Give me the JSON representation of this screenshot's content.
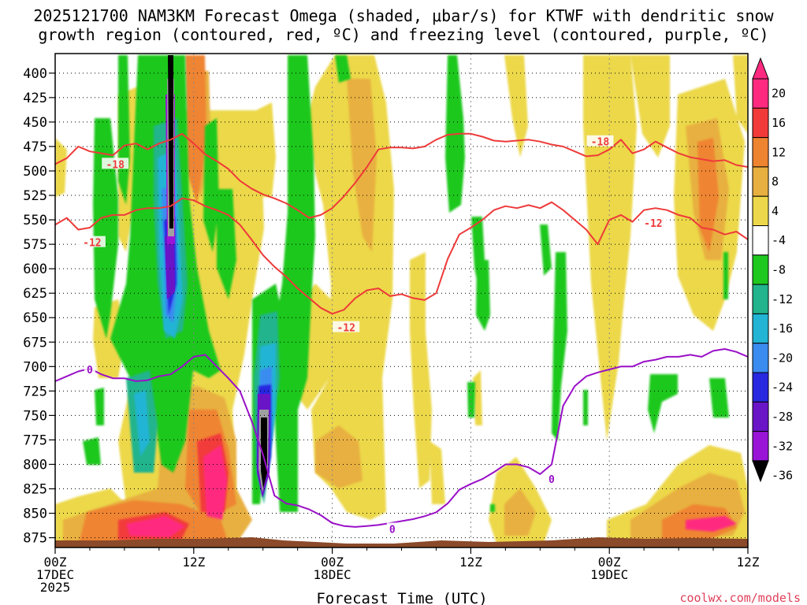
{
  "chart_data": {
    "type": "heatmap",
    "title_line1": "2025121700 NAM3KM Forecast Omega (shaded, μbar/s) for KTWF with dendritic snow",
    "title_line2": "growth region (contoured, red, ºC) and freezing level (contoured, purple, ºC)",
    "xlabel": "Forecast Time (UTC)",
    "ylabel": "",
    "credit": "coolwx.com/models",
    "y_ticks": [
      "400",
      "425",
      "450",
      "475",
      "500",
      "525",
      "550",
      "575",
      "600",
      "625",
      "650",
      "675",
      "700",
      "725",
      "750",
      "775",
      "800",
      "825",
      "850",
      "875"
    ],
    "y_range_mb": [
      380,
      885
    ],
    "x_range_hours": [
      0,
      60
    ],
    "x_ticks": [
      {
        "hour": 0,
        "line1": "00Z",
        "line2": "17DEC",
        "line3": "2025"
      },
      {
        "hour": 12,
        "line1": "12Z",
        "line2": "",
        "line3": ""
      },
      {
        "hour": 24,
        "line1": "00Z",
        "line2": "18DEC",
        "line3": ""
      },
      {
        "hour": 36,
        "line1": "12Z",
        "line2": "",
        "line3": ""
      },
      {
        "hour": 48,
        "line1": "00Z",
        "line2": "19DEC",
        "line3": ""
      },
      {
        "hour": 60,
        "line1": "12Z",
        "line2": "",
        "line3": ""
      }
    ],
    "colorbar": {
      "labels": [
        "20",
        "16",
        "12",
        "8",
        "4",
        "-4",
        "-8",
        "-12",
        "-16",
        "-20",
        "-24",
        "-28",
        "-32",
        "-36"
      ],
      "colors": [
        "#ff2a80",
        "#f23a3a",
        "#ef8430",
        "#e8b040",
        "#ecd84a",
        "#ffffff",
        "#1ec81e",
        "#22b48c",
        "#22b4d4",
        "#3a8cf0",
        "#2828e0",
        "#6a14c8",
        "#9a14d8",
        "#a0a0a0",
        "#000000"
      ]
    },
    "series": [
      {
        "name": "-18C isotherm",
        "color": "#ee3a3a",
        "x": [
          0,
          1,
          2,
          3,
          4,
          5,
          6,
          7,
          8,
          9,
          10,
          11,
          12,
          13,
          14,
          15,
          16,
          17,
          18,
          19,
          20,
          21,
          22,
          23,
          24,
          25,
          26,
          27,
          28,
          29,
          30,
          31,
          32,
          33,
          34,
          35,
          36,
          37,
          38,
          39,
          40,
          41,
          42,
          43,
          44,
          45,
          46,
          47,
          48,
          49,
          50,
          51,
          52,
          53,
          54,
          55,
          56,
          57,
          58,
          59,
          60
        ],
        "y": [
          493,
          487,
          475,
          480,
          482,
          484,
          474,
          472,
          478,
          472,
          468,
          462,
          472,
          483,
          490,
          498,
          510,
          518,
          524,
          528,
          533,
          540,
          548,
          545,
          538,
          526,
          512,
          496,
          478,
          476,
          476,
          477,
          475,
          468,
          463,
          462,
          462,
          465,
          469,
          470,
          469,
          468,
          470,
          473,
          475,
          480,
          485,
          484,
          478,
          468,
          482,
          478,
          470,
          476,
          482,
          486,
          488,
          490,
          489,
          494,
          496
        ]
      },
      {
        "name": "-12C isotherm",
        "color": "#ee3a3a",
        "x": [
          0,
          1,
          2,
          3,
          4,
          5,
          6,
          7,
          8,
          9,
          10,
          11,
          12,
          13,
          14,
          15,
          16,
          17,
          18,
          19,
          20,
          21,
          22,
          23,
          24,
          25,
          26,
          27,
          28,
          29,
          30,
          31,
          32,
          33,
          34,
          35,
          36,
          37,
          38,
          39,
          40,
          41,
          42,
          43,
          44,
          45,
          46,
          47,
          48,
          49,
          50,
          51,
          52,
          53,
          54,
          55,
          56,
          57,
          58,
          59,
          60
        ],
        "y": [
          555,
          548,
          560,
          558,
          548,
          545,
          545,
          540,
          538,
          538,
          536,
          528,
          530,
          536,
          540,
          545,
          555,
          570,
          586,
          598,
          608,
          620,
          630,
          640,
          646,
          642,
          630,
          622,
          620,
          628,
          626,
          630,
          632,
          625,
          590,
          565,
          558,
          550,
          540,
          536,
          538,
          535,
          538,
          532,
          540,
          550,
          560,
          575,
          550,
          545,
          552,
          540,
          538,
          540,
          545,
          548,
          558,
          560,
          565,
          562,
          570
        ]
      },
      {
        "name": "0C freezing level",
        "color": "#9a10c8",
        "x": [
          0,
          1,
          2,
          3,
          4,
          5,
          6,
          7,
          8,
          9,
          10,
          11,
          12,
          13,
          14,
          15,
          16,
          17,
          18,
          19,
          20,
          21,
          22,
          23,
          24,
          25,
          26,
          27,
          28,
          29,
          30,
          31,
          32,
          33,
          34,
          35,
          36,
          37,
          38,
          39,
          40,
          41,
          42,
          43,
          44,
          45,
          46,
          47,
          48,
          49,
          50,
          51,
          52,
          53,
          54,
          55,
          56,
          57,
          58,
          59,
          60
        ],
        "y": [
          715,
          710,
          705,
          702,
          708,
          712,
          712,
          715,
          714,
          710,
          708,
          700,
          690,
          688,
          700,
          712,
          725,
          755,
          790,
          832,
          840,
          842,
          846,
          852,
          860,
          863,
          864,
          863,
          862,
          860,
          858,
          856,
          853,
          849,
          840,
          826,
          820,
          815,
          808,
          800,
          800,
          803,
          810,
          800,
          740,
          720,
          710,
          706,
          703,
          700,
          700,
          695,
          693,
          690,
          690,
          688,
          690,
          684,
          682,
          685,
          690
        ]
      }
    ],
    "isotherm_labels": [
      {
        "text": "-18",
        "hour": 5.2,
        "mb": 493
      },
      {
        "text": "-18",
        "hour": 47.2,
        "mb": 470
      },
      {
        "text": "-12",
        "hour": 3.2,
        "mb": 573
      },
      {
        "text": "-12",
        "hour": 25.2,
        "mb": 660
      },
      {
        "text": "-12",
        "hour": 51.8,
        "mb": 553
      },
      {
        "text": "0",
        "hour": 3.0,
        "mb": 703
      },
      {
        "text": "0",
        "hour": 29.2,
        "mb": 866
      },
      {
        "text": "0",
        "hour": 43.0,
        "mb": 815
      }
    ]
  }
}
